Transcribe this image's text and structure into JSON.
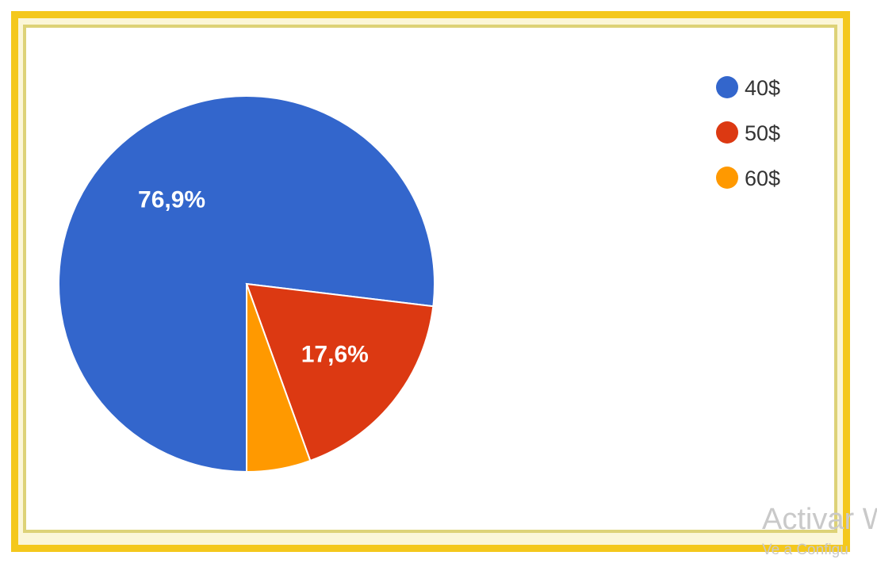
{
  "chart_data": {
    "type": "pie",
    "title": "",
    "legend_position": "top-right",
    "slices": [
      {
        "label": "40$",
        "value": 76.9,
        "value_label": "76,9%",
        "color": "#3366cc"
      },
      {
        "label": "50$",
        "value": 17.6,
        "value_label": "17,6%",
        "color": "#dc3912"
      },
      {
        "label": "60$",
        "value": 5.5,
        "value_label": "",
        "color": "#ff9900"
      }
    ]
  },
  "watermark": {
    "line1": "Activar W",
    "line2": "Ve a Configu"
  }
}
